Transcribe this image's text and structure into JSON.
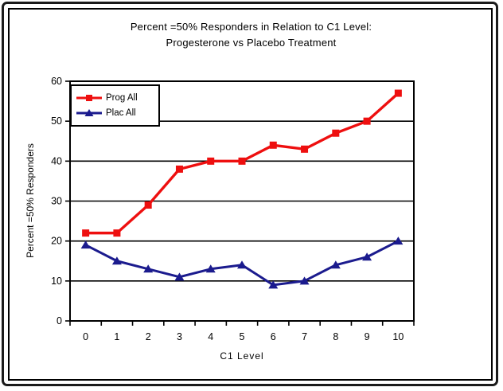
{
  "title": {
    "line1": "Percent =50% Responders in Relation to C1 Level:",
    "line2": "Progesterone vs Placebo Treatment"
  },
  "chart_data": {
    "type": "line",
    "title": "Percent =50% Responders in Relation to C1 Level: Progesterone vs Placebo Treatment",
    "xlabel": "C1 Level",
    "ylabel": "Percent =50% Responders",
    "categories": [
      0,
      1,
      2,
      3,
      4,
      5,
      6,
      7,
      8,
      9,
      10
    ],
    "series": [
      {
        "name": "Prog All",
        "marker": "square",
        "color": "#ee0f0f",
        "values": [
          22,
          22,
          29,
          38,
          40,
          40,
          44,
          43,
          47,
          50,
          57
        ]
      },
      {
        "name": "Plac All",
        "marker": "triangle",
        "color": "#1b1b8e",
        "values": [
          19,
          15,
          13,
          11,
          13,
          14,
          9,
          10,
          14,
          16,
          20
        ]
      }
    ],
    "ylim": [
      0,
      60
    ],
    "yticks": [
      0,
      10,
      20,
      30,
      40,
      50,
      60
    ],
    "grid": true,
    "gridline_color": "#000000",
    "legend_position": "top-left",
    "plot_background": "#ffffff"
  }
}
